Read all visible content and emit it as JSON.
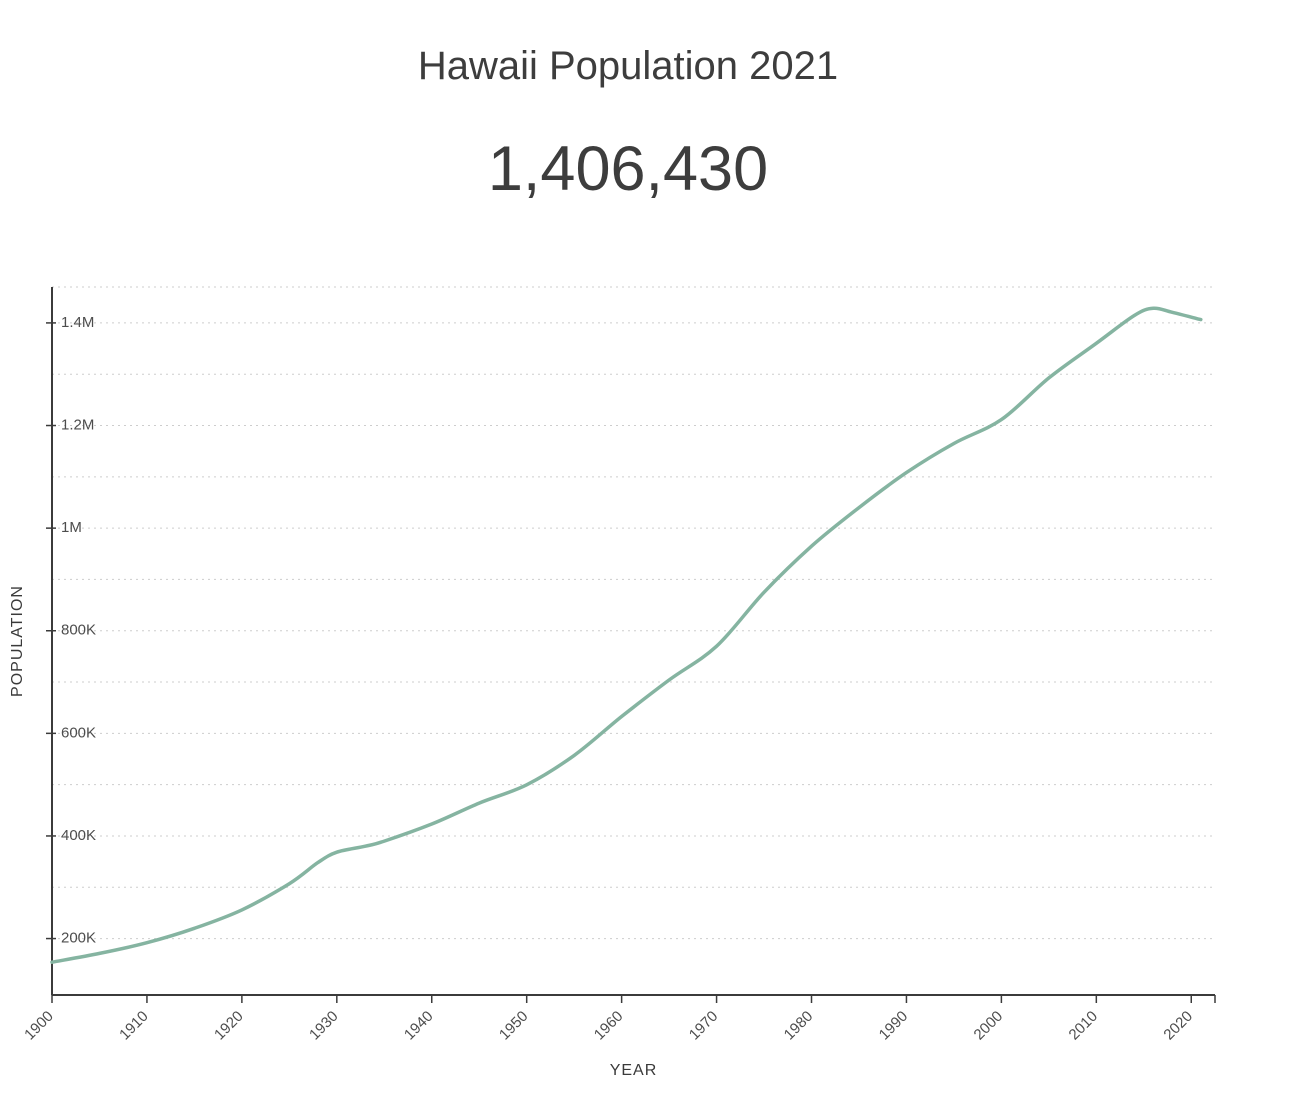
{
  "page": {
    "title": "Hawaii Population 2021",
    "population_value": "1,406,430"
  },
  "chart_data": {
    "type": "line",
    "title": "Hawaii Population 2021",
    "subtitle_value": "1,406,430",
    "xlabel": "YEAR",
    "ylabel": "POPULATION",
    "x": [
      1900,
      1905,
      1910,
      1915,
      1920,
      1925,
      1928,
      1930,
      1933,
      1935,
      1940,
      1945,
      1950,
      1955,
      1960,
      1965,
      1970,
      1975,
      1980,
      1985,
      1990,
      1995,
      2000,
      2005,
      2010,
      2014,
      2016,
      2018,
      2021
    ],
    "series": [
      {
        "name": "Population",
        "values": [
          154001,
          171000,
          191909,
          220000,
          255912,
          307000,
          348000,
          368336,
          380000,
          390000,
          423330,
          464000,
          499794,
          557000,
          632772,
          704000,
          769913,
          875000,
          964691,
          1040000,
          1108229,
          1165000,
          1211537,
          1292729,
          1360301,
          1414538,
          1428557,
          1420593,
          1406430
        ]
      }
    ],
    "xlim": [
      1900,
      2022.5
    ],
    "ylim": [
      90000,
      1470000
    ],
    "x_ticks": [
      1900,
      1910,
      1920,
      1930,
      1940,
      1950,
      1960,
      1970,
      1980,
      1990,
      2000,
      2010,
      2020
    ],
    "y_ticks": [
      {
        "value": 200000,
        "label": "200K"
      },
      {
        "value": 400000,
        "label": "400K"
      },
      {
        "value": 600000,
        "label": "600K"
      },
      {
        "value": 800000,
        "label": "800K"
      },
      {
        "value": 1000000,
        "label": "1M"
      },
      {
        "value": 1200000,
        "label": "1.2M"
      },
      {
        "value": 1400000,
        "label": "1.4M"
      }
    ],
    "y_grid_step": 100000,
    "grid": true,
    "legend": false,
    "line_color": "#85b4a1",
    "axis_color": "#3b3b3b",
    "grid_color": "#cdcdcd",
    "tick_text_color": "#4d4d4d"
  }
}
